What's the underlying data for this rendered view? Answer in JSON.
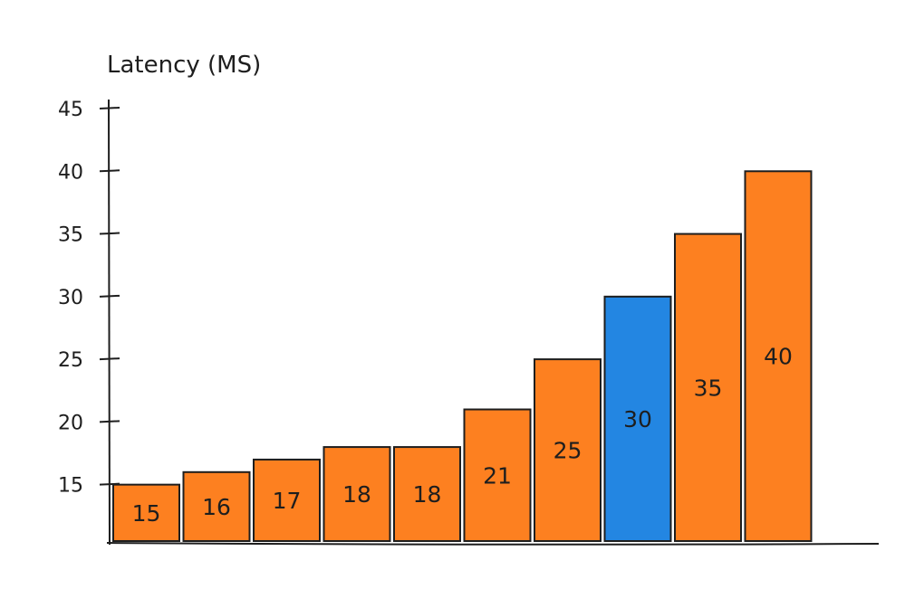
{
  "chart_data": {
    "type": "bar",
    "title": "",
    "xlabel": "",
    "ylabel": "Latency (MS)",
    "categories": [
      "",
      "",
      "",
      "",
      "",
      "",
      "",
      "",
      "",
      ""
    ],
    "values": [
      15,
      16,
      17,
      18,
      18,
      21,
      25,
      30,
      35,
      40
    ],
    "data_labels": [
      "15",
      "16",
      "17",
      "18",
      "18",
      "21",
      "25",
      "30",
      "35",
      "40"
    ],
    "yticks": [
      15,
      20,
      25,
      30,
      35,
      40,
      45
    ],
    "ylim": [
      10.5,
      45
    ],
    "grid": false,
    "legend": "none",
    "colors": {
      "bar": "#fd8020",
      "highlight": "#2386e2",
      "stroke": "#1e1e1e"
    },
    "highlight_index": 7
  }
}
